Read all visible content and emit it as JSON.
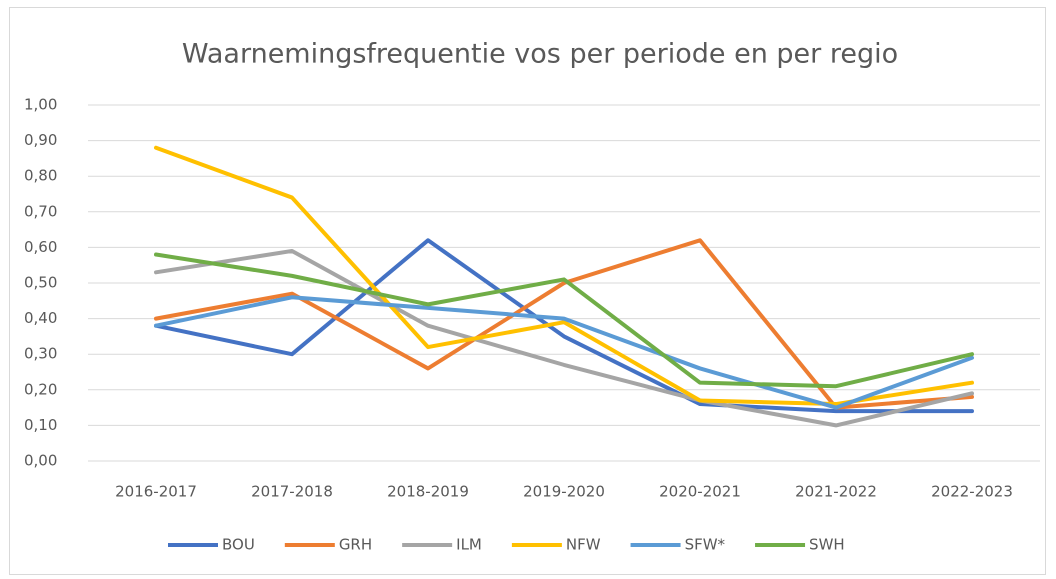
{
  "chart_data": {
    "type": "line",
    "title": "Waarnemingsfrequentie vos per periode en per regio",
    "categories": [
      "2016-2017",
      "2017-2018",
      "2018-2019",
      "2019-2020",
      "2020-2021",
      "2021-2022",
      "2022-2023"
    ],
    "series": [
      {
        "name": "BOU",
        "color": "#4472c4",
        "values": [
          0.38,
          0.3,
          0.62,
          0.35,
          0.16,
          0.14,
          0.14
        ]
      },
      {
        "name": "GRH",
        "color": "#ed7d31",
        "values": [
          0.4,
          0.47,
          0.26,
          0.5,
          0.62,
          0.15,
          0.18
        ]
      },
      {
        "name": "ILM",
        "color": "#a5a5a5",
        "values": [
          0.53,
          0.59,
          0.38,
          0.27,
          0.17,
          0.1,
          0.19
        ]
      },
      {
        "name": "NFW",
        "color": "#ffc000",
        "values": [
          0.88,
          0.74,
          0.32,
          0.39,
          0.17,
          0.16,
          0.22
        ]
      },
      {
        "name": "SFW*",
        "color": "#5b9bd5",
        "values": [
          0.38,
          0.46,
          0.43,
          0.4,
          0.26,
          0.15,
          0.29
        ]
      },
      {
        "name": "SWH",
        "color": "#70ad47",
        "values": [
          0.58,
          0.52,
          0.44,
          0.51,
          0.22,
          0.21,
          0.3
        ]
      }
    ],
    "ylim": [
      0,
      1
    ],
    "yticks": [
      {
        "value": 0,
        "label": "0,00"
      },
      {
        "value": 0.1,
        "label": "0,10"
      },
      {
        "value": 0.2,
        "label": "0,20"
      },
      {
        "value": 0.3,
        "label": "0,30"
      },
      {
        "value": 0.4,
        "label": "0,40"
      },
      {
        "value": 0.5,
        "label": "0,50"
      },
      {
        "value": 0.6,
        "label": "0,60"
      },
      {
        "value": 0.7,
        "label": "0,70"
      },
      {
        "value": 0.8,
        "label": "0,80"
      },
      {
        "value": 0.9,
        "label": "0,90"
      },
      {
        "value": 1,
        "label": "1,00"
      }
    ],
    "grid": true,
    "legend": "bottom"
  }
}
